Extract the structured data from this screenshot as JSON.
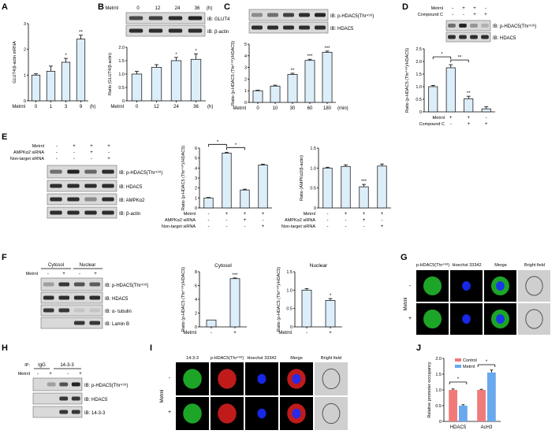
{
  "panels": {
    "A": "A",
    "B": "B",
    "C": "C",
    "D": "D",
    "E": "E",
    "F": "F",
    "G": "G",
    "H": "H",
    "I": "I",
    "J": "J"
  },
  "colors": {
    "bar_fill": "#ddeefb",
    "bar_stroke": "#222222",
    "blot_band": "#1a1a1a",
    "blot_bg": "#d9d9d9",
    "fluor_green": "#22c22e",
    "fluor_blue": "#1a2cff",
    "fluor_red": "#e02020",
    "control_red": "#f07a7a",
    "metrnl_blue": "#6aa8ee"
  },
  "labels": {
    "metrnl": "Metrnl",
    "h_unit": "(h)",
    "min_unit": "(min)",
    "compound_c": "Compound C",
    "ampk_sirna": "AMPKα2 siRNA",
    "nontarget_sirna": "Non-target siRNA",
    "ib_glut4": "IB: GLUT4",
    "ib_actin": "IB: β-actin",
    "ib_phdac5": "IB: p-HDAC5(Thr⁴⁹⁸)",
    "ib_hdac5": "IB: HDAC5",
    "ib_ampk": "IB: AMPKα2",
    "ib_tubulin": "IB: α- tubulin",
    "ib_laminb": "IB: Lamin B",
    "ib_1433": "IB: 14-3-3",
    "cytosol": "Cytosol",
    "nuclear": "Nuclear",
    "ip": "IP:",
    "igg": "IgG",
    "p1433": "14-3-3",
    "phdac5_col": "p-HDAC5(Thr⁴⁹⁸)",
    "hoechst": "Hoechst 33342",
    "merge": "Merge",
    "bright": "Bright field",
    "minus": "-",
    "plus": "+"
  },
  "blots": {
    "B_top": [
      "0",
      "12",
      "24",
      "36"
    ],
    "C_top": [
      "0",
      "10",
      "30",
      "60",
      "180"
    ],
    "D_metrnl": [
      "-",
      "+",
      "+",
      "-"
    ],
    "D_compound": [
      "-",
      "-",
      "+",
      "+"
    ],
    "E_metrnl": [
      "-",
      "+",
      "+",
      "+"
    ],
    "E_ampk": [
      "-",
      "-",
      "+",
      "-"
    ],
    "E_nt": [
      "-",
      "-",
      "-",
      "+"
    ],
    "F_metrnl": [
      "-",
      "+",
      "-",
      "+"
    ],
    "H_metrnl": [
      "-",
      "+",
      "-",
      "+"
    ]
  },
  "chart_data": [
    {
      "panel": "A",
      "type": "bar",
      "categories": [
        "0",
        "1",
        "3",
        "9"
      ],
      "values": [
        1.0,
        1.15,
        1.5,
        2.4
      ],
      "errors": [
        0.05,
        0.2,
        0.15,
        0.15
      ],
      "sig": [
        "",
        "",
        "*",
        "**"
      ],
      "ylabel": "GLUT4/β-actin mRNA",
      "xlabel": "Metrnl",
      "xunit": "(h)",
      "ylim": [
        0,
        3
      ],
      "yticks": [
        "0",
        "1",
        "2",
        "3"
      ]
    },
    {
      "panel": "B",
      "type": "bar",
      "categories": [
        "0",
        "12",
        "24",
        "36"
      ],
      "values": [
        1.0,
        1.25,
        1.5,
        1.55
      ],
      "errors": [
        0.1,
        0.1,
        0.12,
        0.2
      ],
      "sig": [
        "",
        "",
        "*",
        "*"
      ],
      "ylabel": "Ratio (GLUT4/β-actin)",
      "xlabel": "Metrnl",
      "xunit": "(h)",
      "ylim": [
        0,
        2.0
      ],
      "yticks": [
        "0",
        "0.5",
        "1.0",
        "1.5",
        "2.0"
      ]
    },
    {
      "panel": "C",
      "type": "bar",
      "categories": [
        "0",
        "10",
        "30",
        "60",
        "180"
      ],
      "values": [
        1.0,
        1.4,
        2.4,
        3.6,
        4.3
      ],
      "errors": [
        0.05,
        0.08,
        0.1,
        0.1,
        0.1
      ],
      "sig": [
        "",
        "",
        "**",
        "***",
        "***"
      ],
      "ylabel": "Ratio (p-HDAC5 (Thr⁴⁹⁸)/HDAC5)",
      "xlabel": "Metrnl",
      "xunit": "(min)",
      "ylim": [
        0,
        5
      ],
      "yticks": [
        "0",
        "1",
        "2",
        "3",
        "4",
        "5"
      ]
    },
    {
      "panel": "D",
      "type": "bar",
      "categories": [
        "1",
        "2",
        "3",
        "4"
      ],
      "values": [
        1.0,
        1.75,
        0.52,
        0.12
      ],
      "errors": [
        0.05,
        0.12,
        0.1,
        0.08
      ],
      "sig": [
        "",
        "",
        "**",
        ""
      ],
      "brackets": [
        [
          "*",
          0,
          1
        ],
        [
          "**",
          1,
          2
        ]
      ],
      "ylabel": "Ratio (p-HDAC5 (Thr⁴⁹⁸)/HDAC5)",
      "ylim": [
        0,
        2.5
      ],
      "yticks": [
        "0",
        "0.5",
        "1.0",
        "1.5",
        "2.0",
        "2.5"
      ],
      "rows": [
        [
          "Metrnl",
          "-",
          "+",
          "+",
          "-"
        ],
        [
          "Compound C",
          "-",
          "-",
          "+",
          "+"
        ]
      ]
    },
    {
      "panel": "E1",
      "type": "bar",
      "categories": [
        "1",
        "2",
        "3",
        "4"
      ],
      "values": [
        1.0,
        5.5,
        1.8,
        4.3
      ],
      "errors": [
        0.05,
        0.08,
        0.08,
        0.08
      ],
      "sig": [
        "",
        "",
        "",
        ""
      ],
      "brackets": [
        [
          "*",
          0,
          1
        ],
        [
          "*",
          1,
          2
        ]
      ],
      "ylabel": "Ratio (p-HDAC5 (Thr⁴⁹⁸)/HDAC5)",
      "ylim": [
        0,
        6
      ],
      "yticks": [
        "0",
        "1",
        "2",
        "3",
        "4",
        "5",
        "6"
      ],
      "rows": [
        [
          "Metrnl",
          "-",
          "+",
          "+",
          "+"
        ],
        [
          "AMPKα2 siRNA",
          "-",
          "-",
          "+",
          "-"
        ],
        [
          "Non-target siRNA",
          "-",
          "-",
          "-",
          "+"
        ]
      ]
    },
    {
      "panel": "E2",
      "type": "bar",
      "categories": [
        "1",
        "2",
        "3",
        "4"
      ],
      "values": [
        1.0,
        1.04,
        0.53,
        1.05
      ],
      "errors": [
        0.02,
        0.04,
        0.06,
        0.05
      ],
      "sig": [
        "",
        "",
        "***",
        ""
      ],
      "ylabel": "Ratio (AMPKα2/β-actin)",
      "ylim": [
        0,
        1.5
      ],
      "yticks": [
        "0",
        "0.5",
        "1.0",
        "1.5"
      ],
      "rows": [
        [
          "Metrnl",
          "-",
          "+",
          "+",
          "+"
        ],
        [
          "AMPKα2 siRNA",
          "-",
          "-",
          "+",
          "-"
        ],
        [
          "Non-target siRNA",
          "-",
          "-",
          "-",
          "+"
        ]
      ]
    },
    {
      "panel": "F1",
      "type": "bar",
      "title": "Cytosol",
      "categories": [
        "-",
        "+"
      ],
      "values": [
        1.0,
        7.0
      ],
      "errors": [
        0.0,
        0.1
      ],
      "sig": [
        "",
        "***"
      ],
      "ylabel": "Ratio (p-HDAC5 (Thr⁴⁹⁸)/HDAC5)",
      "xlabel": "Metrnl",
      "ylim": [
        0,
        8
      ],
      "yticks": [
        "0",
        "2",
        "4",
        "6",
        "8"
      ]
    },
    {
      "panel": "F2",
      "type": "bar",
      "title": "Nuclear",
      "categories": [
        "-",
        "+"
      ],
      "values": [
        1.0,
        0.72
      ],
      "errors": [
        0.04,
        0.05
      ],
      "sig": [
        "",
        "*"
      ],
      "ylabel": "Ratio (p-HDAC5 (Thr⁴⁹⁸)/HDAC5)",
      "xlabel": "Metrnl",
      "ylim": [
        0,
        1.5
      ],
      "yticks": [
        "0",
        "0.5",
        "1.0",
        "1.5"
      ]
    },
    {
      "panel": "J",
      "type": "bar",
      "categories": [
        "HDAC5",
        "AcH3"
      ],
      "series": [
        {
          "name": "Control",
          "values": [
            1.0,
            1.0
          ],
          "errors": [
            0.03,
            0.02
          ]
        },
        {
          "name": "Metrnl",
          "values": [
            0.5,
            1.55
          ],
          "errors": [
            0.03,
            0.08
          ]
        }
      ],
      "brackets": [
        [
          "*",
          0
        ],
        [
          "*",
          1
        ]
      ],
      "ylabel": "Relative promoter occupancy",
      "ylim": [
        0,
        2.0
      ],
      "yticks": [
        "0",
        "0.5",
        "1.0",
        "1.5",
        "2.0"
      ],
      "legend": "top-left"
    }
  ]
}
